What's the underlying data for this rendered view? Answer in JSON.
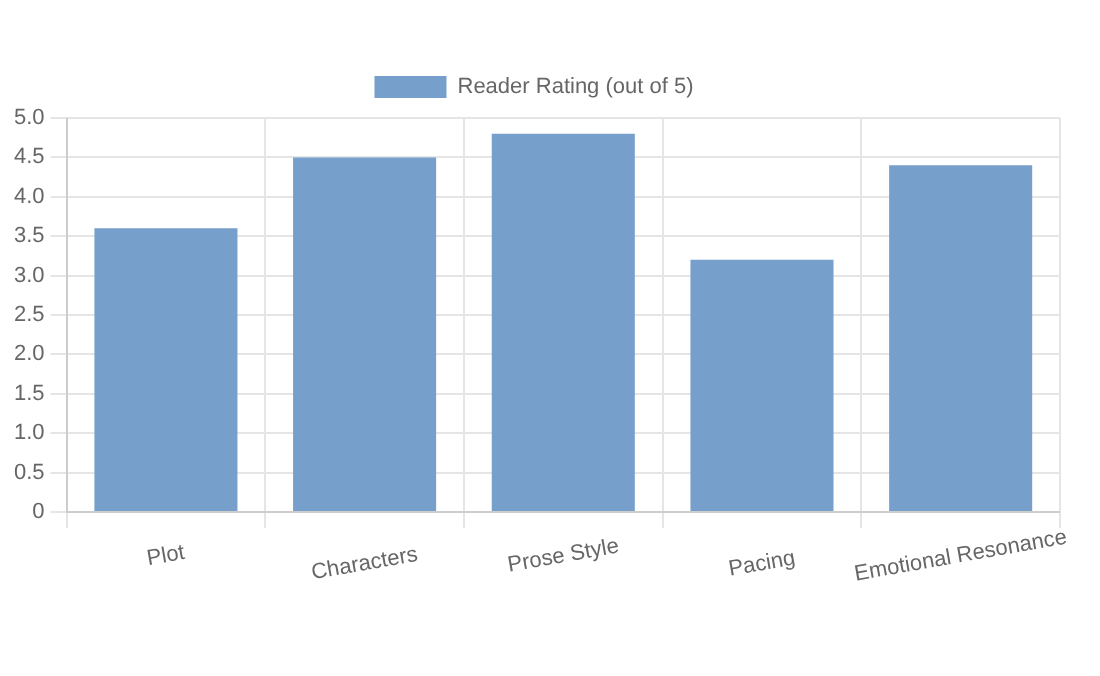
{
  "chart_data": {
    "type": "bar",
    "categories": [
      "Plot",
      "Characters",
      "Prose Style",
      "Pacing",
      "Emotional Resonance"
    ],
    "series": [
      {
        "name": "Reader Rating (out of 5)",
        "color": "#769fcb",
        "values": [
          3.6,
          4.5,
          4.8,
          3.2,
          4.4
        ]
      }
    ],
    "ylim": [
      0,
      5
    ],
    "yticks": [
      0,
      {
        "value": 0.5,
        "label": "0.5"
      },
      {
        "value": 1,
        "label": "1.0"
      },
      {
        "value": 1.5,
        "label": "1.5"
      },
      {
        "value": 2,
        "label": "2.0"
      },
      {
        "value": 2.5,
        "label": "2.5"
      },
      {
        "value": 3,
        "label": "3.0"
      },
      {
        "value": 3.5,
        "label": "3.5"
      },
      {
        "value": 4,
        "label": "4.0"
      },
      {
        "value": 4.5,
        "label": "4.5"
      },
      {
        "value": 5,
        "label": "5.0"
      }
    ],
    "grid": true,
    "legend": "top"
  }
}
